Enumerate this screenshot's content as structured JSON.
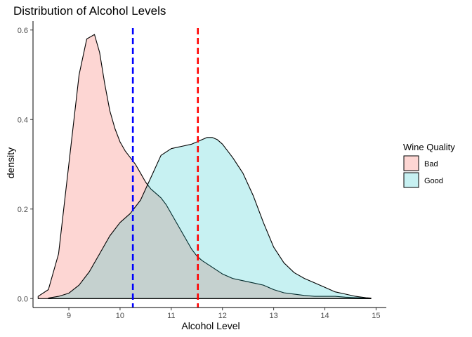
{
  "chart_data": {
    "type": "area",
    "title": "Distribution of Alcohol Levels",
    "xlabel": "Alcohol Level",
    "ylabel": "density",
    "xlim": [
      8.3,
      15.2
    ],
    "ylim": [
      -0.02,
      0.62
    ],
    "x_ticks": [
      9,
      10,
      11,
      12,
      13,
      14,
      15
    ],
    "y_ticks": [
      0.0,
      0.2,
      0.4,
      0.6
    ],
    "y_tick_labels": [
      "0.0",
      "0.2",
      "0.4",
      "0.6"
    ],
    "grid": false,
    "legend": {
      "title": "Wine Quality",
      "placement": "right",
      "entries": [
        "Bad",
        "Good"
      ]
    },
    "series": [
      {
        "name": "Bad",
        "fill": "#f8766d",
        "fill_opacity": 0.3,
        "x": [
          8.4,
          8.6,
          8.8,
          9.0,
          9.2,
          9.35,
          9.5,
          9.6,
          9.7,
          9.8,
          9.9,
          10.0,
          10.1,
          10.2,
          10.3,
          10.4,
          10.5,
          10.6,
          10.7,
          10.8,
          10.9,
          11.0,
          11.1,
          11.2,
          11.3,
          11.4,
          11.5,
          11.6,
          11.8,
          12.0,
          12.2,
          12.4,
          12.6,
          12.8,
          13.0,
          13.2,
          13.4,
          13.6,
          13.8,
          14.0,
          14.2,
          14.4,
          14.6,
          14.8,
          14.9
        ],
        "y": [
          0.005,
          0.02,
          0.1,
          0.3,
          0.5,
          0.58,
          0.59,
          0.55,
          0.48,
          0.42,
          0.38,
          0.35,
          0.33,
          0.315,
          0.3,
          0.28,
          0.26,
          0.245,
          0.235,
          0.225,
          0.21,
          0.19,
          0.17,
          0.15,
          0.13,
          0.11,
          0.095,
          0.085,
          0.07,
          0.055,
          0.045,
          0.04,
          0.035,
          0.03,
          0.02,
          0.013,
          0.01,
          0.007,
          0.005,
          0.005,
          0.005,
          0.003,
          0.002,
          0.001,
          0.001
        ]
      },
      {
        "name": "Good",
        "fill": "#00bfc4",
        "fill_opacity": 0.22,
        "x": [
          8.6,
          8.8,
          9.0,
          9.2,
          9.4,
          9.6,
          9.8,
          10.0,
          10.2,
          10.4,
          10.6,
          10.8,
          11.0,
          11.2,
          11.4,
          11.5,
          11.6,
          11.7,
          11.8,
          11.9,
          12.0,
          12.2,
          12.4,
          12.6,
          12.8,
          13.0,
          13.2,
          13.4,
          13.6,
          13.8,
          14.0,
          14.2,
          14.4,
          14.6,
          14.8,
          14.9
        ],
        "y": [
          0.001,
          0.005,
          0.012,
          0.03,
          0.06,
          0.1,
          0.14,
          0.17,
          0.19,
          0.22,
          0.27,
          0.32,
          0.335,
          0.34,
          0.345,
          0.35,
          0.355,
          0.36,
          0.36,
          0.355,
          0.345,
          0.315,
          0.28,
          0.23,
          0.17,
          0.115,
          0.08,
          0.058,
          0.045,
          0.035,
          0.025,
          0.015,
          0.01,
          0.005,
          0.002,
          0.001
        ]
      }
    ],
    "vlines": [
      {
        "x": 10.25,
        "color": "#0000ff",
        "style": "dashed"
      },
      {
        "x": 11.52,
        "color": "#ff0000",
        "style": "dashed"
      }
    ]
  }
}
